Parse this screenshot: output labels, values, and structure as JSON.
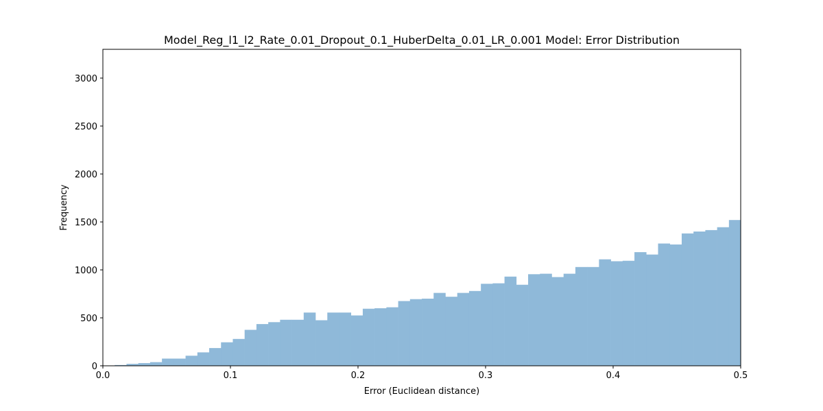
{
  "chart_data": {
    "type": "bar",
    "title": "Model_Reg_l1_l2_Rate_0.01_Dropout_0.1_HuberDelta_0.01_LR_0.001 Model: Error Distribution",
    "xlabel": "Error (Euclidean distance)",
    "ylabel": "Frequency",
    "xlim": [
      0.0,
      0.5
    ],
    "ylim": [
      0,
      3300
    ],
    "xticks": [
      "0.0",
      "0.1",
      "0.2",
      "0.3",
      "0.4",
      "0.5"
    ],
    "xtick_values": [
      0.0,
      0.1,
      0.2,
      0.3,
      0.4,
      0.5
    ],
    "yticks": [
      "0",
      "500",
      "1000",
      "1500",
      "2000",
      "2500",
      "3000"
    ],
    "ytick_values": [
      0,
      500,
      1000,
      1500,
      2000,
      2500,
      3000
    ],
    "grid": false,
    "color": "#8fb9d9",
    "bin_start": 0.0,
    "bin_width": 0.00926,
    "values": [
      1,
      8,
      20,
      28,
      38,
      75,
      75,
      105,
      140,
      185,
      245,
      280,
      375,
      435,
      455,
      480,
      480,
      555,
      475,
      555,
      555,
      525,
      595,
      600,
      610,
      675,
      695,
      700,
      760,
      720,
      760,
      780,
      855,
      860,
      930,
      845,
      955,
      960,
      925,
      960,
      1030,
      1030,
      1110,
      1090,
      1095,
      1185,
      1160,
      1275,
      1265,
      1380,
      1400,
      1415,
      1445,
      1520
    ]
  }
}
